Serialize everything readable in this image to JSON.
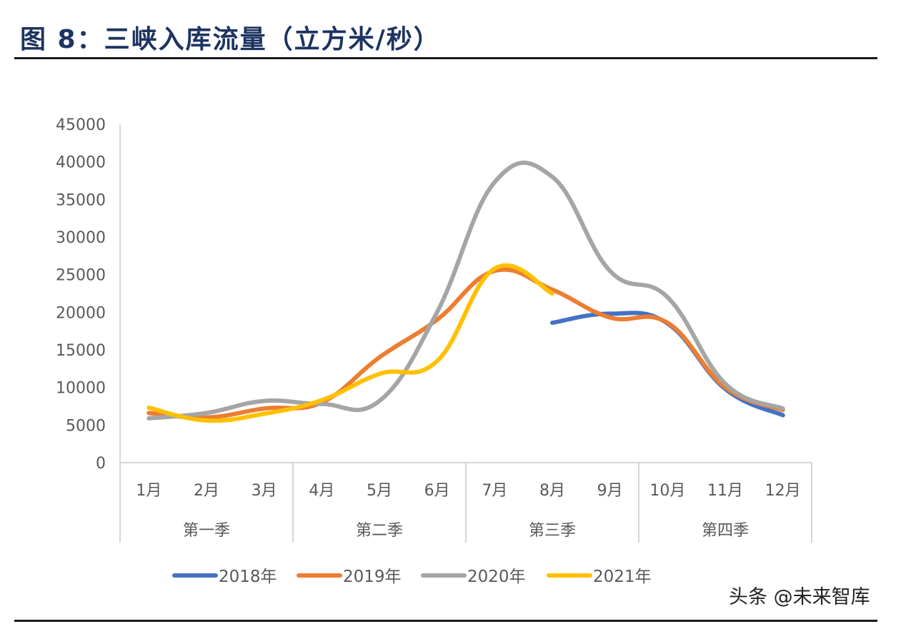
{
  "figure": {
    "title": "图 8：三峡入库流量（立方米/秒）"
  },
  "watermark": "头条 @未来智库",
  "chart_data": {
    "type": "line",
    "title": "",
    "xlabel": "",
    "ylabel": "",
    "ylim": [
      0,
      45000
    ],
    "yticks": [
      "0",
      "5000",
      "10000",
      "15000",
      "20000",
      "25000",
      "30000",
      "35000",
      "40000",
      "45000"
    ],
    "categories": [
      "1月",
      "2月",
      "3月",
      "4月",
      "5月",
      "6月",
      "7月",
      "8月",
      "9月",
      "10月",
      "11月",
      "12月"
    ],
    "category_groups": [
      {
        "label": "第一季",
        "span": 3
      },
      {
        "label": "第二季",
        "span": 3
      },
      {
        "label": "第三季",
        "span": 3
      },
      {
        "label": "第四季",
        "span": 3
      }
    ],
    "grid": false,
    "legend_position": "bottom",
    "series": [
      {
        "name": "2018年",
        "color": "#4472c4",
        "values": [
          null,
          null,
          null,
          null,
          null,
          null,
          null,
          18600,
          19800,
          18500,
          9800,
          6300
        ]
      },
      {
        "name": "2019年",
        "color": "#ed7d31",
        "values": [
          6600,
          6000,
          7200,
          8000,
          14000,
          19000,
          25500,
          23000,
          19300,
          18600,
          10000,
          7000
        ]
      },
      {
        "name": "2020年",
        "color": "#a5a5a5",
        "values": [
          5900,
          6600,
          8200,
          7800,
          8200,
          20000,
          37300,
          38000,
          25500,
          22000,
          10500,
          7200
        ]
      },
      {
        "name": "2021年",
        "color": "#ffc000",
        "values": [
          7300,
          5600,
          6500,
          8300,
          11800,
          13500,
          25800,
          22500,
          null,
          null,
          null,
          null
        ]
      }
    ]
  }
}
